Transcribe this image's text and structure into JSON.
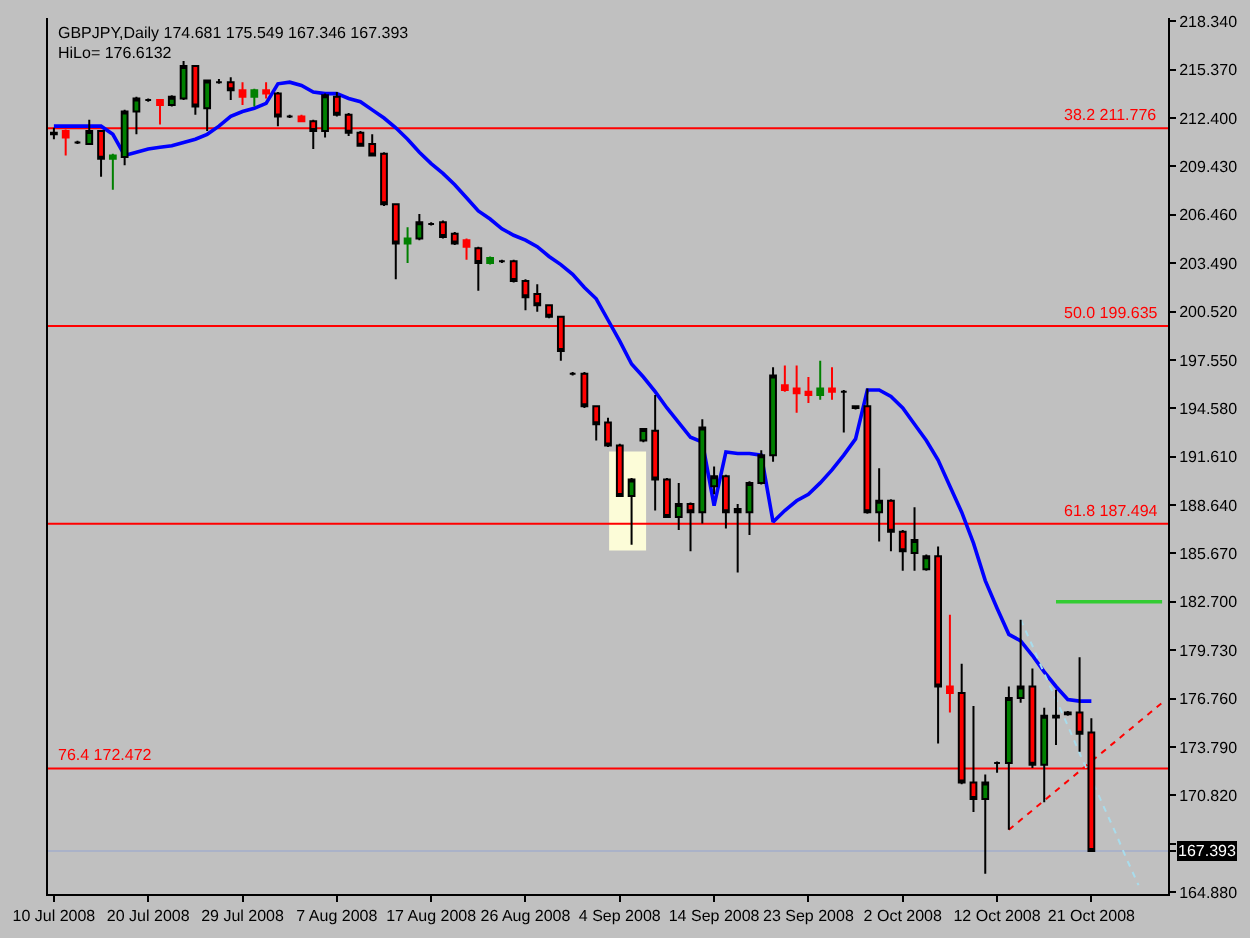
{
  "chart_data": {
    "type": "candlestick",
    "title": "GBPJPY,Daily 174.681 175.549 167.346 167.393",
    "subtitle": "HiLo= 176.6132",
    "categories": [
      "10 Jul 2008",
      null,
      null,
      null,
      null,
      null,
      null,
      null,
      "20 Jul 2008",
      null,
      null,
      null,
      null,
      null,
      null,
      null,
      "29 Jul 2008",
      null,
      null,
      null,
      null,
      null,
      null,
      null,
      "7 Aug 2008",
      null,
      null,
      null,
      null,
      null,
      null,
      null,
      "17 Aug 2008",
      null,
      null,
      null,
      null,
      null,
      null,
      null,
      "26 Aug 2008",
      null,
      null,
      null,
      null,
      null,
      null,
      null,
      "4 Sep 2008",
      null,
      null,
      null,
      null,
      null,
      null,
      null,
      "14 Sep 2008",
      null,
      null,
      null,
      null,
      null,
      null,
      null,
      "23 Sep 2008",
      null,
      null,
      null,
      null,
      null,
      null,
      null,
      "2 Oct 2008",
      null,
      null,
      null,
      null,
      null,
      null,
      null,
      "12 Oct 2008",
      null,
      null,
      null,
      null,
      null,
      null,
      null,
      "21 Oct 2008",
      null,
      null,
      null,
      null,
      null,
      null
    ],
    "ohlc": [
      [
        211.5,
        211.8,
        211.1,
        211.4
      ],
      [
        211.6,
        211.7,
        210.1,
        211.2
      ],
      [
        210.9,
        211.0,
        210.8,
        210.9
      ],
      [
        210.8,
        212.3,
        210.8,
        211.6
      ],
      [
        211.6,
        211.6,
        208.8,
        209.9
      ],
      [
        209.9,
        210.2,
        208.0,
        210.1
      ],
      [
        210.0,
        212.9,
        209.5,
        212.8
      ],
      [
        212.8,
        213.7,
        211.4,
        213.6
      ],
      [
        213.5,
        213.6,
        213.4,
        213.5
      ],
      [
        213.5,
        213.5,
        212.0,
        213.2
      ],
      [
        213.2,
        213.8,
        213.1,
        213.7
      ],
      [
        213.6,
        215.9,
        213.5,
        215.6
      ],
      [
        215.6,
        215.6,
        212.6,
        213.1
      ],
      [
        213.0,
        214.7,
        211.6,
        214.7
      ],
      [
        214.6,
        214.8,
        214.5,
        214.6
      ],
      [
        214.6,
        214.9,
        213.5,
        214.1
      ],
      [
        214.1,
        214.6,
        213.2,
        213.7
      ],
      [
        213.7,
        214.2,
        213.1,
        214.1
      ],
      [
        214.1,
        214.6,
        213.6,
        213.9
      ],
      [
        213.9,
        214.0,
        211.9,
        212.5
      ],
      [
        212.5,
        212.6,
        212.4,
        212.5
      ],
      [
        212.5,
        212.6,
        212.2,
        212.2
      ],
      [
        212.2,
        212.3,
        210.5,
        211.6
      ],
      [
        211.6,
        213.9,
        211.2,
        213.8
      ],
      [
        213.7,
        214.0,
        212.5,
        212.6
      ],
      [
        212.6,
        212.7,
        211.3,
        211.5
      ],
      [
        211.5,
        211.6,
        210.7,
        210.7
      ],
      [
        210.8,
        211.4,
        210.1,
        210.1
      ],
      [
        210.2,
        210.3,
        207.0,
        207.1
      ],
      [
        207.1,
        207.1,
        202.5,
        204.7
      ],
      [
        204.7,
        205.7,
        203.5,
        205.0
      ],
      [
        205.0,
        206.5,
        204.9,
        206.0
      ],
      [
        205.9,
        206.0,
        205.8,
        205.9
      ],
      [
        206.0,
        206.1,
        205.0,
        205.1
      ],
      [
        205.3,
        205.4,
        204.6,
        204.7
      ],
      [
        204.9,
        205.0,
        203.7,
        204.5
      ],
      [
        204.4,
        204.5,
        201.8,
        203.5
      ],
      [
        203.5,
        203.9,
        203.4,
        203.8
      ],
      [
        203.6,
        203.7,
        203.5,
        203.6
      ],
      [
        203.6,
        203.7,
        202.3,
        202.4
      ],
      [
        202.4,
        202.5,
        200.6,
        201.4
      ],
      [
        201.6,
        202.2,
        200.5,
        200.9
      ],
      [
        200.9,
        200.9,
        200.1,
        200.2
      ],
      [
        200.2,
        200.2,
        197.5,
        198.1
      ],
      [
        196.7,
        196.8,
        196.6,
        196.7
      ],
      [
        196.7,
        196.8,
        194.6,
        194.7
      ],
      [
        194.7,
        194.7,
        192.6,
        193.6
      ],
      [
        193.7,
        194.0,
        192.2,
        192.3
      ],
      [
        192.3,
        192.4,
        189.2,
        189.2
      ],
      [
        189.2,
        190.3,
        186.2,
        190.2
      ],
      [
        192.6,
        193.3,
        192.5,
        193.3
      ],
      [
        193.2,
        195.4,
        188.3,
        190.2
      ],
      [
        190.2,
        190.3,
        187.9,
        187.9
      ],
      [
        187.9,
        190.0,
        187.1,
        188.7
      ],
      [
        188.7,
        188.8,
        185.8,
        188.2
      ],
      [
        188.2,
        193.9,
        187.5,
        193.4
      ],
      [
        189.8,
        191.0,
        189.3,
        190.4
      ],
      [
        190.4,
        190.5,
        187.2,
        188.2
      ],
      [
        188.2,
        188.7,
        184.5,
        188.4
      ],
      [
        188.2,
        190.1,
        186.8,
        190.0
      ],
      [
        190.0,
        192.0,
        189.9,
        191.7
      ],
      [
        191.7,
        197.1,
        191.3,
        196.6
      ],
      [
        196.0,
        197.2,
        195.6,
        195.7
      ],
      [
        195.8,
        197.2,
        194.3,
        195.5
      ],
      [
        195.6,
        196.5,
        194.9,
        195.4
      ],
      [
        195.4,
        197.5,
        195.1,
        195.8
      ],
      [
        195.8,
        197.1,
        195.1,
        195.6
      ],
      [
        195.6,
        195.7,
        193.1,
        195.6
      ],
      [
        194.7,
        194.7,
        194.5,
        194.6
      ],
      [
        194.7,
        195.8,
        188.1,
        188.2
      ],
      [
        188.2,
        190.9,
        186.4,
        188.9
      ],
      [
        188.9,
        189.0,
        185.8,
        187.0
      ],
      [
        187.0,
        187.1,
        184.6,
        185.8
      ],
      [
        185.7,
        188.5,
        184.6,
        186.5
      ],
      [
        184.7,
        185.6,
        184.6,
        185.5
      ],
      [
        185.5,
        186.1,
        174.0,
        177.5
      ],
      [
        177.5,
        181.9,
        175.9,
        177.1
      ],
      [
        177.1,
        178.9,
        171.5,
        171.6
      ],
      [
        171.6,
        176.3,
        169.8,
        170.6
      ],
      [
        170.6,
        172.1,
        166.0,
        171.6
      ],
      [
        172.8,
        172.9,
        172.2,
        172.8
      ],
      [
        172.8,
        177.5,
        168.7,
        176.8
      ],
      [
        176.8,
        181.6,
        176.5,
        177.5
      ],
      [
        177.5,
        178.6,
        172.5,
        172.7
      ],
      [
        172.7,
        176.2,
        170.4,
        175.7
      ],
      [
        175.7,
        177.3,
        173.9,
        175.6
      ],
      [
        175.8,
        176.0,
        175.7,
        175.9
      ],
      [
        175.9,
        179.3,
        173.5,
        174.6
      ],
      [
        174.681,
        175.549,
        167.346,
        167.393
      ],
      null,
      null,
      null,
      null,
      null,
      null
    ],
    "colors": [
      "#000000",
      "#ff0000",
      "#000000",
      "#008000",
      "#ff0000",
      "#008000",
      "#008000",
      "#008000",
      "#000000",
      "#ff0000",
      "#008000",
      "#008000",
      "#ff0000",
      "#008000",
      "#000000",
      "#ff0000",
      "#ff0000",
      "#008000",
      "#ff0000",
      "#ff0000",
      "#000000",
      "#ff0000",
      "#ff0000",
      "#008000",
      "#ff0000",
      "#ff0000",
      "#ff0000",
      "#ff0000",
      "#ff0000",
      "#ff0000",
      "#008000",
      "#008000",
      "#000000",
      "#ff0000",
      "#ff0000",
      "#ff0000",
      "#ff0000",
      "#008000",
      "#000000",
      "#ff0000",
      "#ff0000",
      "#ff0000",
      "#ff0000",
      "#ff0000",
      "#000000",
      "#ff0000",
      "#ff0000",
      "#ff0000",
      "#ff0000",
      "#008000",
      "#008000",
      "#ff0000",
      "#ff0000",
      "#008000",
      "#ff0000",
      "#008000",
      "#008000",
      "#ff0000",
      "#000000",
      "#008000",
      "#008000",
      "#008000",
      "#ff0000",
      "#ff0000",
      "#ff0000",
      "#008000",
      "#ff0000",
      "#000000",
      "#000000",
      "#ff0000",
      "#008000",
      "#ff0000",
      "#ff0000",
      "#008000",
      "#008000",
      "#ff0000",
      "#ff0000",
      "#ff0000",
      "#ff0000",
      "#008000",
      "#000000",
      "#008000",
      "#008000",
      "#ff0000",
      "#008000",
      "#000000",
      "#000000",
      "#ff0000",
      "#ff0000",
      null,
      null,
      null,
      null,
      null,
      null
    ],
    "series": [
      {
        "type": "line",
        "color": "#0000ff",
        "values": [
          211.9,
          211.9,
          211.9,
          211.9,
          211.9,
          211.4,
          210.1,
          210.3,
          210.5,
          210.6,
          210.7,
          210.9,
          211.1,
          211.4,
          211.9,
          212.5,
          212.8,
          213.0,
          213.3,
          214.5,
          214.6,
          214.4,
          214.0,
          213.9,
          213.9,
          213.6,
          213.4,
          212.9,
          212.4,
          211.8,
          211.1,
          210.3,
          209.6,
          209.0,
          208.3,
          207.5,
          206.7,
          206.2,
          205.6,
          205.2,
          204.9,
          204.5,
          203.9,
          203.4,
          202.8,
          202.0,
          201.3,
          200.0,
          198.7,
          197.3,
          196.5,
          195.6,
          194.6,
          193.7,
          192.8,
          192.5,
          188.6,
          191.9,
          191.8,
          191.8,
          191.7,
          187.6,
          188.3,
          188.9,
          189.3,
          190.0,
          190.8,
          191.7,
          192.7,
          195.7,
          195.7,
          195.3,
          194.6,
          193.6,
          192.6,
          191.4,
          189.8,
          188.2,
          186.3,
          184.0,
          182.3,
          180.7,
          180.3,
          179.4,
          178.4,
          177.5,
          176.7,
          176.6,
          176.6,
          null,
          null,
          null,
          null,
          null,
          null
        ]
      },
      {
        "type": "line",
        "color": "#33cc33",
        "values": [
          null,
          null,
          null,
          null,
          null,
          null,
          null,
          null,
          null,
          null,
          null,
          null,
          null,
          null,
          null,
          null,
          null,
          null,
          null,
          null,
          null,
          null,
          null,
          null,
          null,
          null,
          null,
          null,
          null,
          null,
          null,
          null,
          null,
          null,
          null,
          null,
          null,
          null,
          null,
          null,
          null,
          null,
          null,
          null,
          null,
          null,
          null,
          null,
          null,
          null,
          null,
          null,
          null,
          null,
          null,
          null,
          null,
          null,
          null,
          null,
          null,
          null,
          null,
          null,
          null,
          null,
          null,
          null,
          null,
          null,
          null,
          null,
          null,
          null,
          null,
          null,
          null,
          null,
          null,
          null,
          null,
          null,
          null,
          null,
          null,
          182.7,
          182.7,
          182.7,
          182.7,
          182.7,
          182.7,
          182.7,
          182.7,
          182.7,
          182.7
        ]
      },
      {
        "type": "line",
        "color": "#ff0000",
        "line_style": "dotted",
        "values": [
          null,
          null,
          null,
          null,
          null,
          null,
          null,
          null,
          null,
          null,
          null,
          null,
          null,
          null,
          null,
          null,
          null,
          null,
          null,
          null,
          null,
          null,
          null,
          null,
          null,
          null,
          null,
          null,
          null,
          null,
          null,
          null,
          null,
          null,
          null,
          null,
          null,
          null,
          null,
          null,
          null,
          null,
          null,
          null,
          null,
          null,
          null,
          null,
          null,
          null,
          null,
          null,
          null,
          null,
          null,
          null,
          null,
          null,
          null,
          null,
          null,
          null,
          null,
          null,
          null,
          null,
          null,
          null,
          null,
          null,
          null,
          null,
          null,
          null,
          null,
          null,
          null,
          null,
          null,
          null,
          null,
          168.7,
          169.3,
          169.9,
          170.5,
          171.1,
          171.7,
          172.3,
          172.9,
          173.5,
          174.1,
          174.7,
          175.3,
          175.9,
          176.5
        ]
      },
      {
        "type": "line",
        "color": "#a8dcec",
        "line_style": "dotted",
        "values": [
          null,
          null,
          null,
          null,
          null,
          null,
          null,
          null,
          null,
          null,
          null,
          null,
          null,
          null,
          null,
          null,
          null,
          null,
          null,
          null,
          null,
          null,
          null,
          null,
          null,
          null,
          null,
          null,
          null,
          null,
          null,
          null,
          null,
          null,
          null,
          null,
          null,
          null,
          null,
          null,
          null,
          null,
          null,
          null,
          null,
          null,
          null,
          null,
          null,
          null,
          null,
          null,
          null,
          null,
          null,
          null,
          null,
          null,
          null,
          null,
          null,
          null,
          null,
          null,
          null,
          null,
          null,
          null,
          null,
          null,
          null,
          null,
          null,
          null,
          null,
          null,
          null,
          null,
          null,
          null,
          null,
          null,
          181.6,
          180.0,
          178.3,
          176.7,
          175.1,
          173.4,
          171.8,
          170.2,
          168.6,
          166.9,
          165.3,
          null,
          null
        ]
      }
    ],
    "ref_lines": [
      {
        "axis": "y",
        "value": 211.776,
        "label": "38.2 211.776",
        "color": "#ff0000"
      },
      {
        "axis": "y",
        "value": 199.635,
        "label": "50.0 199.635",
        "color": "#ff0000"
      },
      {
        "axis": "y",
        "value": 187.494,
        "label": "61.8 187.494",
        "color": "#ff0000"
      },
      {
        "axis": "y",
        "value": 172.472,
        "label": "76.4 172.472",
        "color": "#ff0000"
      },
      {
        "axis": "y",
        "value": 167.393,
        "color": "#aab2c8"
      }
    ],
    "ylim": [
      164.76,
      218.54
    ],
    "yticks": [
      {
        "value": 164.88,
        "label": "164.880"
      },
      {
        "value": 167.393,
        "label": "167.393"
      },
      {
        "value": 167.85,
        "label": null
      },
      {
        "value": 170.82,
        "label": "170.820"
      },
      {
        "value": 173.79,
        "label": "173.790"
      },
      {
        "value": 176.76,
        "label": "176.760"
      },
      {
        "value": 179.73,
        "label": "179.730"
      },
      {
        "value": 182.7,
        "label": "182.700"
      },
      {
        "value": 185.67,
        "label": "185.670"
      },
      {
        "value": 188.64,
        "label": "188.640"
      },
      {
        "value": 191.61,
        "label": "191.610"
      },
      {
        "value": 194.58,
        "label": "194.580"
      },
      {
        "value": 197.55,
        "label": "197.550"
      },
      {
        "value": 200.52,
        "label": "200.520"
      },
      {
        "value": 203.49,
        "label": "203.490"
      },
      {
        "value": 206.46,
        "label": "206.460"
      },
      {
        "value": 209.43,
        "label": "209.430"
      },
      {
        "value": 212.4,
        "label": "212.400"
      },
      {
        "value": 215.37,
        "label": "215.370"
      },
      {
        "value": 218.34,
        "label": "218.340"
      }
    ]
  }
}
